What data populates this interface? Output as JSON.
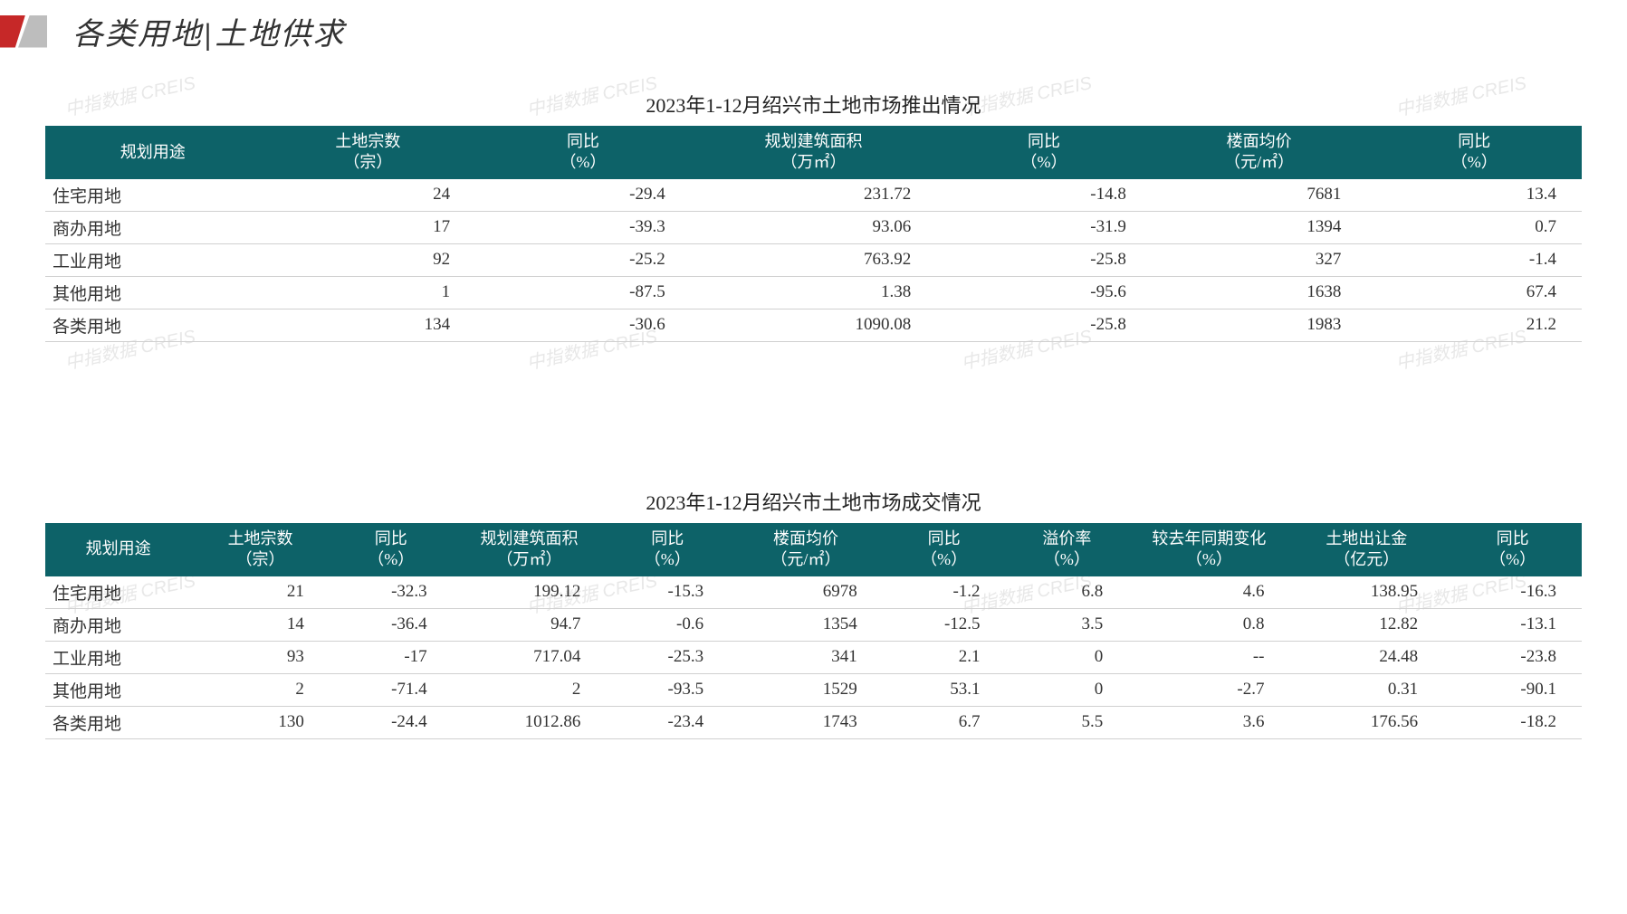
{
  "header": {
    "title_left": "各类用地",
    "title_right": "土地供求"
  },
  "watermark_text": "中指数据 CREIS",
  "colors": {
    "header_bg": "#0d6268",
    "header_text": "#ffffff",
    "row_border": "#d0d0d0",
    "body_text": "#333333",
    "logo_red": "#c62828",
    "logo_gray": "#bdbdbd",
    "background": "#ffffff",
    "watermark": "#e8e8e8"
  },
  "typography": {
    "title_fontsize": 34,
    "table_title_fontsize": 22,
    "th_fontsize": 18,
    "td_fontsize": 19,
    "title_font_family": "KaiTi"
  },
  "table1": {
    "title": "2023年1-12月绍兴市土地市场推出情况",
    "columns": [
      {
        "line1": "规划用途",
        "line2": ""
      },
      {
        "line1": "土地宗数",
        "line2": "（宗）"
      },
      {
        "line1": "同比",
        "line2": "（%）"
      },
      {
        "line1": "规划建筑面积",
        "line2": "（万㎡）"
      },
      {
        "line1": "同比",
        "line2": "（%）"
      },
      {
        "line1": "楼面均价",
        "line2": "（元/㎡）"
      },
      {
        "line1": "同比",
        "line2": "（%）"
      }
    ],
    "col_widths": [
      "14%",
      "14%",
      "14%",
      "16%",
      "14%",
      "14%",
      "14%"
    ],
    "rows": [
      {
        "label": "住宅用地",
        "c1": "24",
        "c2": "-29.4",
        "c3": "231.72",
        "c4": "-14.8",
        "c5": "7681",
        "c6": "13.4"
      },
      {
        "label": "商办用地",
        "c1": "17",
        "c2": "-39.3",
        "c3": "93.06",
        "c4": "-31.9",
        "c5": "1394",
        "c6": "0.7"
      },
      {
        "label": "工业用地",
        "c1": "92",
        "c2": "-25.2",
        "c3": "763.92",
        "c4": "-25.8",
        "c5": "327",
        "c6": "-1.4"
      },
      {
        "label": "其他用地",
        "c1": "1",
        "c2": "-87.5",
        "c3": "1.38",
        "c4": "-95.6",
        "c5": "1638",
        "c6": "67.4"
      },
      {
        "label": "各类用地",
        "c1": "134",
        "c2": "-30.6",
        "c3": "1090.08",
        "c4": "-25.8",
        "c5": "1983",
        "c6": "21.2"
      }
    ]
  },
  "table2": {
    "title": "2023年1-12月绍兴市土地市场成交情况",
    "columns": [
      {
        "line1": "规划用途",
        "line2": ""
      },
      {
        "line1": "土地宗数",
        "line2": "（宗）"
      },
      {
        "line1": "同比",
        "line2": "（%）"
      },
      {
        "line1": "规划建筑面积",
        "line2": "（万㎡）"
      },
      {
        "line1": "同比",
        "line2": "（%）"
      },
      {
        "line1": "楼面均价",
        "line2": "（元/㎡）"
      },
      {
        "line1": "同比",
        "line2": "（%）"
      },
      {
        "line1": "溢价率",
        "line2": "（%）"
      },
      {
        "line1": "较去年同期变化",
        "line2": "（%）"
      },
      {
        "line1": "土地出让金",
        "line2": "（亿元）"
      },
      {
        "line1": "同比",
        "line2": "（%）"
      }
    ],
    "col_widths": [
      "9.5%",
      "9%",
      "8%",
      "10%",
      "8%",
      "10%",
      "8%",
      "8%",
      "10.5%",
      "10%",
      "9%"
    ],
    "rows": [
      {
        "label": "住宅用地",
        "c1": "21",
        "c2": "-32.3",
        "c3": "199.12",
        "c4": "-15.3",
        "c5": "6978",
        "c6": "-1.2",
        "c7": "6.8",
        "c8": "4.6",
        "c9": "138.95",
        "c10": "-16.3"
      },
      {
        "label": "商办用地",
        "c1": "14",
        "c2": "-36.4",
        "c3": "94.7",
        "c4": "-0.6",
        "c5": "1354",
        "c6": "-12.5",
        "c7": "3.5",
        "c8": "0.8",
        "c9": "12.82",
        "c10": "-13.1"
      },
      {
        "label": "工业用地",
        "c1": "93",
        "c2": "-17",
        "c3": "717.04",
        "c4": "-25.3",
        "c5": "341",
        "c6": "2.1",
        "c7": "0",
        "c8": "--",
        "c9": "24.48",
        "c10": "-23.8"
      },
      {
        "label": "其他用地",
        "c1": "2",
        "c2": "-71.4",
        "c3": "2",
        "c4": "-93.5",
        "c5": "1529",
        "c6": "53.1",
        "c7": "0",
        "c8": "-2.7",
        "c9": "0.31",
        "c10": "-90.1"
      },
      {
        "label": "各类用地",
        "c1": "130",
        "c2": "-24.4",
        "c3": "1012.86",
        "c4": "-23.4",
        "c5": "1743",
        "c6": "6.7",
        "c7": "5.5",
        "c8": "3.6",
        "c9": "176.56",
        "c10": "-18.2"
      }
    ]
  }
}
